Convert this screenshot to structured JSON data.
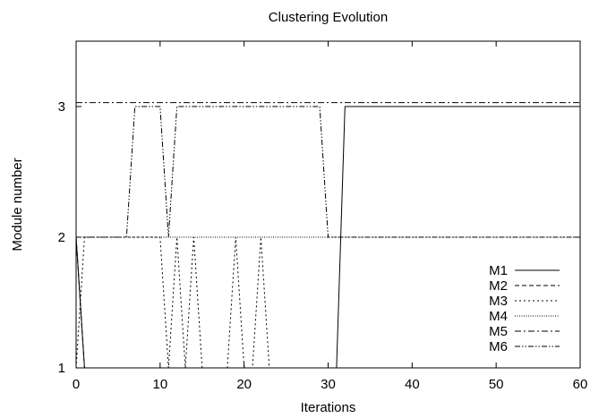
{
  "chart_data": {
    "type": "line",
    "title": "Clustering Evolution",
    "xlabel": "Iterations",
    "ylabel": "Module number",
    "xlim": [
      0,
      60
    ],
    "ylim": [
      1,
      3.5
    ],
    "xticks": [
      0,
      10,
      20,
      30,
      40,
      50,
      60
    ],
    "yticks": [
      1,
      2,
      3
    ],
    "grid": false,
    "legend_position": "bottom-right",
    "series": [
      {
        "name": "M1",
        "dash": "solid",
        "points": [
          [
            0,
            2
          ],
          [
            1,
            1
          ],
          [
            31,
            1
          ],
          [
            32,
            3
          ],
          [
            60,
            3
          ]
        ]
      },
      {
        "name": "M2",
        "dash": "dashed",
        "points": [
          [
            0,
            2
          ],
          [
            1,
            1
          ],
          [
            60,
            1
          ]
        ]
      },
      {
        "name": "M3",
        "dash": "dotted",
        "points": [
          [
            0,
            1
          ],
          [
            1,
            2
          ],
          [
            10,
            2
          ],
          [
            11,
            1
          ],
          [
            12,
            2
          ],
          [
            13,
            1
          ],
          [
            14,
            2
          ],
          [
            15,
            1
          ],
          [
            18,
            1
          ],
          [
            19,
            2
          ],
          [
            20,
            1
          ],
          [
            21,
            1
          ],
          [
            22,
            2
          ],
          [
            23,
            1
          ],
          [
            60,
            1
          ]
        ]
      },
      {
        "name": "M4",
        "dash": "fine-dotted",
        "points": [
          [
            0,
            2
          ],
          [
            60,
            2
          ]
        ]
      },
      {
        "name": "M5",
        "dash": "dash-dot",
        "points": [
          [
            0,
            3.03
          ],
          [
            60,
            3.03
          ]
        ]
      },
      {
        "name": "M6",
        "dash": "dash-dot-dot",
        "points": [
          [
            0,
            2
          ],
          [
            6,
            2
          ],
          [
            7,
            3
          ],
          [
            10,
            3
          ],
          [
            11,
            2
          ],
          [
            12,
            3
          ],
          [
            29,
            3
          ],
          [
            30,
            2
          ],
          [
            60,
            2
          ]
        ]
      }
    ]
  }
}
